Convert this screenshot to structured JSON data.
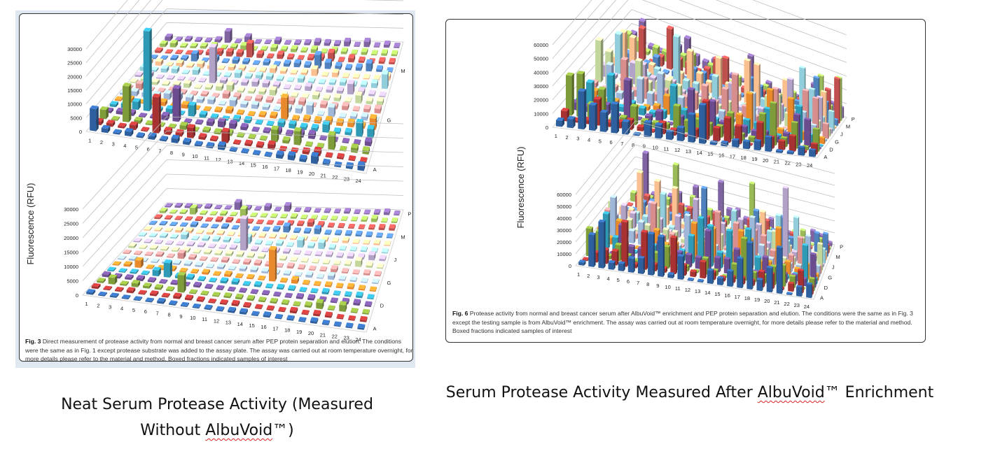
{
  "figures": [
    {
      "id": "fig3",
      "ylabel": "Fluorescence (RFU)",
      "caption_label": "Fig. 3",
      "caption_text": "Direct measurement of protease activity from normal and breast cancer serum after PEP protein separation and elution. The conditions were the same as in Fig. 1 except protease substrate was added to the assay plate. The assay was carried out at room temperature overnight, for more details please refer to the material and method. Boxed fractions indicated samples of interest"
    },
    {
      "id": "fig6",
      "ylabel": "Fluorescence (RFU)",
      "caption_label": "Fig. 6",
      "caption_text": "Protease activity from normal and breast cancer serum after AlbuVoid™ enrichment and PEP protein separation and elution. The conditions were the same as in Fig. 3 except the testing sample is from AlbuVoid™ enrichment. The assay was carried out at room temperature overnight, for more details please refer to the material and method. Boxed fractions indicated samples of interest"
    }
  ],
  "titles": {
    "left_line1": "Neat Serum Protease Activity (Measured",
    "left_line2_pre": "Without ",
    "left_line2_brand": "AlbuVoid",
    "left_line2_post": "™)",
    "right_pre": "Serum Protease Activity Measured After ",
    "right_brand": "AlbuVoid",
    "right_post": "™ Enrichment"
  },
  "colors": {
    "row_palette": [
      "#2e5f9e",
      "#a83232",
      "#7f9c3a",
      "#6a4c8f",
      "#2f9ab5",
      "#e8892b",
      "#9fb7d9",
      "#d98e8e",
      "#c3d69b",
      "#b3a2c7",
      "#92cddc",
      "#fac090",
      "#4f81bd",
      "#c0504d",
      "#9bbb59",
      "#8064a2"
    ],
    "frame": "#333333",
    "grid": "#bfbfbf"
  },
  "chart_data": [
    {
      "type": "bar3d",
      "panel": "fig3-top",
      "x_categories": [
        "1",
        "2",
        "3",
        "4",
        "5",
        "6",
        "7",
        "8",
        "9",
        "10",
        "11",
        "12",
        "13",
        "14",
        "15",
        "16",
        "17",
        "18",
        "19",
        "20",
        "21",
        "22",
        "23",
        "24"
      ],
      "rows_shown": [
        "A",
        "G",
        "M"
      ],
      "yticks": [
        0,
        5000,
        10000,
        15000,
        20000,
        25000,
        30000
      ],
      "ylim": [
        0,
        30000
      ],
      "peaks": [
        {
          "x": "1",
          "row": "A",
          "value": 8000
        },
        {
          "x": "3",
          "row": "C",
          "value": 13000
        },
        {
          "x": "4",
          "row": "E",
          "value": 29000
        },
        {
          "x": "6",
          "row": "B",
          "value": 13000
        },
        {
          "x": "7",
          "row": "D",
          "value": 12000
        },
        {
          "x": "8",
          "row": "J",
          "value": 13000
        },
        {
          "x": "16",
          "row": "F",
          "value": 8000
        }
      ]
    },
    {
      "type": "bar3d",
      "panel": "fig3-bottom",
      "x_categories": [
        "1",
        "2",
        "3",
        "4",
        "5",
        "6",
        "7",
        "8",
        "9",
        "10",
        "11",
        "12",
        "13",
        "14",
        "15",
        "16",
        "17",
        "18",
        "19",
        "20",
        "21",
        "22",
        "23",
        "24"
      ],
      "rows_shown": [
        "A",
        "D",
        "G",
        "J",
        "M",
        "P"
      ],
      "yticks": [
        0,
        5000,
        10000,
        15000,
        20000,
        25000,
        30000
      ],
      "ylim": [
        0,
        30000
      ],
      "peaks": [
        {
          "x": "11",
          "row": "J",
          "value": 11000
        },
        {
          "x": "15",
          "row": "F",
          "value": 11000
        },
        {
          "x": "6",
          "row": "E",
          "value": 5000
        },
        {
          "x": "8",
          "row": "C",
          "value": 6000
        }
      ]
    },
    {
      "type": "bar3d",
      "panel": "fig6-top",
      "x_categories": [
        "1",
        "2",
        "3",
        "4",
        "5",
        "6",
        "7",
        "8",
        "9",
        "10",
        "11",
        "12",
        "13",
        "14",
        "15",
        "16",
        "17",
        "18",
        "19",
        "20",
        "21",
        "22",
        "23",
        "24"
      ],
      "rows_shown": [
        "A",
        "D",
        "G",
        "J",
        "M",
        "P"
      ],
      "yticks": [
        0,
        10000,
        20000,
        30000,
        40000,
        50000,
        60000
      ],
      "ylim": [
        0,
        60000
      ],
      "peaks": [
        {
          "x": "8",
          "row": "K",
          "value": 38000
        },
        {
          "x": "19",
          "row": "F",
          "value": 32000
        },
        {
          "x": "21",
          "row": "K",
          "value": 40000
        },
        {
          "x": "14",
          "row": "B",
          "value": 28000
        }
      ]
    },
    {
      "type": "bar3d",
      "panel": "fig6-bottom",
      "x_categories": [
        "1",
        "2",
        "3",
        "4",
        "5",
        "6",
        "7",
        "8",
        "9",
        "10",
        "11",
        "12",
        "13",
        "14",
        "15",
        "16",
        "17",
        "18",
        "19",
        "20",
        "21",
        "22",
        "23",
        "24"
      ],
      "rows_shown": [
        "A",
        "D",
        "G",
        "J",
        "M",
        "P"
      ],
      "yticks": [
        0,
        10000,
        20000,
        30000,
        40000,
        50000,
        60000
      ],
      "ylim": [
        0,
        60000
      ],
      "peaks": [
        {
          "x": "20",
          "row": "J",
          "value": 60000
        },
        {
          "x": "12",
          "row": "E",
          "value": 39000
        },
        {
          "x": "17",
          "row": "G",
          "value": 40000
        },
        {
          "x": "4",
          "row": "D",
          "value": 26000
        }
      ]
    }
  ]
}
